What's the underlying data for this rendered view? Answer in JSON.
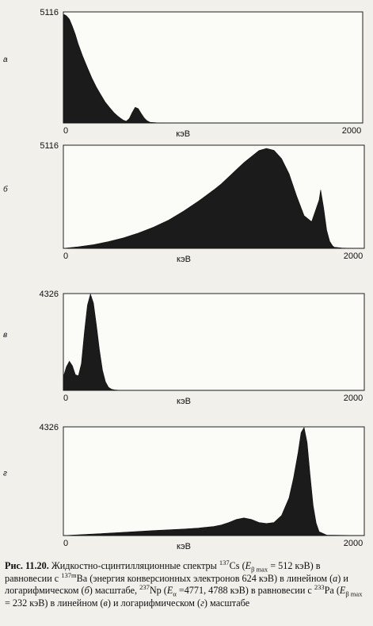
{
  "chart_data": [
    {
      "type": "area",
      "panel_label": "а",
      "scale": "linear",
      "xlabel": "кэВ",
      "x_ticks": [
        "0",
        "2000"
      ],
      "y_max_label": "5116",
      "xlim": [
        0,
        2000
      ],
      "ylim": [
        0,
        5116
      ],
      "x": [
        0,
        5,
        20,
        40,
        60,
        80,
        100,
        130,
        160,
        190,
        220,
        250,
        280,
        310,
        340,
        360,
        380,
        400,
        420,
        440,
        460,
        480,
        500,
        520,
        540,
        560,
        580,
        620,
        700,
        2000
      ],
      "values": [
        4750,
        5000,
        4940,
        4780,
        4460,
        4080,
        3620,
        3060,
        2560,
        2080,
        1660,
        1300,
        960,
        700,
        460,
        340,
        230,
        130,
        80,
        200,
        480,
        720,
        660,
        440,
        230,
        100,
        30,
        10,
        0,
        0
      ]
    },
    {
      "type": "area",
      "panel_label": "б",
      "scale": "logarithmic",
      "xlabel": "кэВ",
      "x_ticks": [
        "0",
        "2000"
      ],
      "y_max_label": "5116",
      "xlim": [
        0,
        2000
      ],
      "ylim": [
        0,
        5116
      ],
      "x": [
        0,
        100,
        200,
        300,
        400,
        500,
        600,
        700,
        800,
        900,
        1000,
        1050,
        1100,
        1150,
        1200,
        1250,
        1300,
        1350,
        1400,
        1450,
        1500,
        1550,
        1600,
        1650,
        1700,
        1710,
        1730,
        1750,
        1770,
        1790,
        1800,
        1850,
        1900,
        2000
      ],
      "values": [
        0,
        80,
        180,
        330,
        520,
        760,
        1050,
        1400,
        1850,
        2350,
        2900,
        3200,
        3550,
        3900,
        4250,
        4550,
        4850,
        4960,
        4860,
        4450,
        3700,
        2600,
        1620,
        1320,
        2400,
        2900,
        2000,
        900,
        350,
        120,
        60,
        20,
        5,
        0
      ]
    },
    {
      "type": "area",
      "panel_label": "в",
      "scale": "linear",
      "xlabel": "кэВ",
      "x_ticks": [
        "0",
        "2000"
      ],
      "y_max_label": "4326",
      "xlim": [
        0,
        2000
      ],
      "ylim": [
        0,
        4326
      ],
      "x": [
        0,
        20,
        40,
        60,
        80,
        100,
        120,
        140,
        160,
        180,
        200,
        220,
        240,
        260,
        280,
        300,
        320,
        340,
        360,
        380,
        400,
        450,
        2000
      ],
      "values": [
        600,
        1050,
        1300,
        1100,
        700,
        650,
        1200,
        2600,
        3800,
        4300,
        3900,
        2900,
        1800,
        900,
        380,
        140,
        50,
        20,
        10,
        5,
        0,
        0,
        0
      ]
    },
    {
      "type": "area",
      "panel_label": "г",
      "scale": "logarithmic",
      "xlabel": "кэВ",
      "x_ticks": [
        "0",
        "2000"
      ],
      "y_max_label": "4326",
      "xlim": [
        0,
        2000
      ],
      "ylim": [
        0,
        4326
      ],
      "x": [
        0,
        200,
        400,
        600,
        800,
        900,
        1000,
        1050,
        1100,
        1150,
        1200,
        1250,
        1300,
        1350,
        1400,
        1450,
        1500,
        1530,
        1560,
        1580,
        1600,
        1620,
        1640,
        1660,
        1680,
        1700,
        1750,
        2000
      ],
      "values": [
        0,
        60,
        130,
        200,
        260,
        300,
        360,
        420,
        520,
        640,
        700,
        640,
        520,
        480,
        520,
        800,
        1500,
        2300,
        3300,
        4100,
        4300,
        3700,
        2400,
        1200,
        500,
        150,
        20,
        0
      ]
    }
  ],
  "caption": {
    "fig_label": "Рис. 11.20.",
    "p1": " Жидкостно-сцинтилляционные спектры ",
    "cs_mass": "137",
    "cs": "Cs (",
    "e1": "E",
    "e1_sub": "β max",
    "p2": " = 512 кэВ) в равновесии с ",
    "ba_mass": "137m",
    "p3": "Ba (энергия конверсионных электронов 624 кэВ) в линейном (",
    "la": "а",
    "p4": ") и логарифмическом (",
    "lb": "б",
    "p5": ") масштабе, ",
    "np_mass": "237",
    "p6": "Np (",
    "e2": "E",
    "e2_sub": "α",
    "p7": " =4771, 4788 кэВ) в равновесии с ",
    "pa_mass": "233",
    "p8": "Pa (",
    "e3": "E",
    "e3_sub": "β max",
    "p9": " = 232 кэВ) в линейном (",
    "lv": "в",
    "p10": ") и логарифмическом (",
    "lg": "г",
    "p11": ") масштабе"
  }
}
